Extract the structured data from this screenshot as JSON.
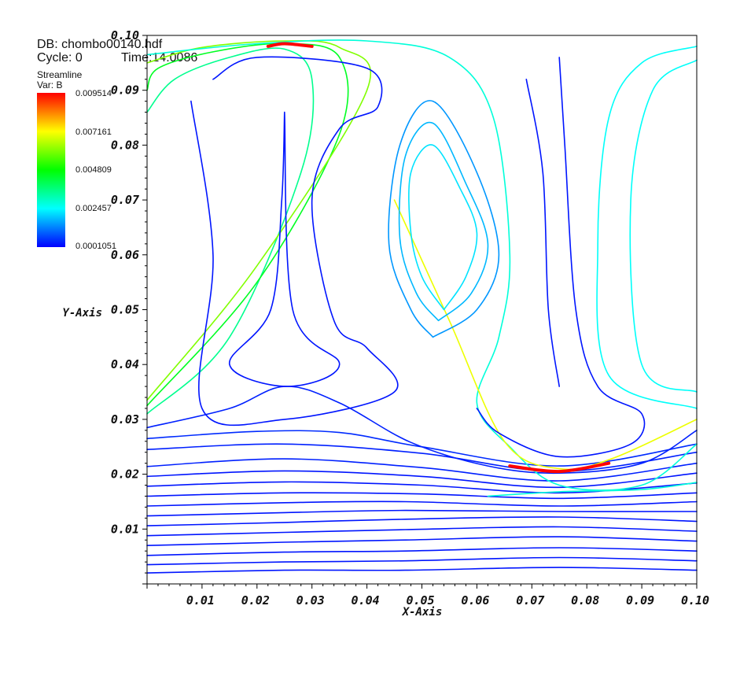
{
  "header": {
    "db": "DB: chombo00140.hdf",
    "cycle": "Cycle: 0",
    "time": "Time:14.0086"
  },
  "legend": {
    "title": "Streamline",
    "var": "Var: B",
    "ticks": [
      "0.009514",
      "0.007161",
      "0.004809",
      "0.002457",
      "0.0001051"
    ],
    "min": 0.0001051,
    "max": 0.009514,
    "colors": [
      "#0000ff",
      "#00ffff",
      "#00ff00",
      "#ffff00",
      "#ff0000"
    ]
  },
  "chart_data": {
    "type": "streamline",
    "xlabel": "X-Axis",
    "ylabel": "Y-Axis",
    "xlim": [
      0,
      0.1
    ],
    "ylim": [
      0,
      0.1
    ],
    "xticks": [
      "0.01",
      "0.02",
      "0.03",
      "0.04",
      "0.05",
      "0.06",
      "0.07",
      "0.08",
      "0.09",
      "0.10"
    ],
    "yticks": [
      "0.01",
      "0.02",
      "0.03",
      "0.04",
      "0.05",
      "0.06",
      "0.07",
      "0.08",
      "0.09",
      "0.10"
    ],
    "variable": "B",
    "streamlines": [
      {
        "v": 0.0003,
        "points": [
          [
            0,
            0.002
          ],
          [
            0.025,
            0.0025
          ],
          [
            0.047,
            0.0025
          ],
          [
            0.075,
            0.003
          ],
          [
            0.1,
            0.0025
          ]
        ]
      },
      {
        "v": 0.0003,
        "points": [
          [
            0,
            0.0035
          ],
          [
            0.025,
            0.004
          ],
          [
            0.047,
            0.0042
          ],
          [
            0.075,
            0.0048
          ],
          [
            0.1,
            0.0042
          ]
        ]
      },
      {
        "v": 0.0003,
        "points": [
          [
            0,
            0.0052
          ],
          [
            0.025,
            0.0058
          ],
          [
            0.047,
            0.006
          ],
          [
            0.075,
            0.0066
          ],
          [
            0.1,
            0.006
          ]
        ]
      },
      {
        "v": 0.0003,
        "points": [
          [
            0,
            0.007
          ],
          [
            0.025,
            0.0076
          ],
          [
            0.047,
            0.008
          ],
          [
            0.075,
            0.0086
          ],
          [
            0.1,
            0.0078
          ]
        ]
      },
      {
        "v": 0.0003,
        "points": [
          [
            0,
            0.0088
          ],
          [
            0.025,
            0.0094
          ],
          [
            0.047,
            0.0099
          ],
          [
            0.075,
            0.0104
          ],
          [
            0.1,
            0.0096
          ]
        ]
      },
      {
        "v": 0.0003,
        "points": [
          [
            0,
            0.0106
          ],
          [
            0.025,
            0.0112
          ],
          [
            0.047,
            0.0118
          ],
          [
            0.075,
            0.0122
          ],
          [
            0.1,
            0.0114
          ]
        ]
      },
      {
        "v": 0.0003,
        "points": [
          [
            0,
            0.0124
          ],
          [
            0.025,
            0.013
          ],
          [
            0.047,
            0.0134
          ],
          [
            0.075,
            0.0132
          ],
          [
            0.1,
            0.0132
          ]
        ]
      },
      {
        "v": 0.0003,
        "points": [
          [
            0,
            0.0142
          ],
          [
            0.025,
            0.0148
          ],
          [
            0.047,
            0.015
          ],
          [
            0.075,
            0.0142
          ],
          [
            0.1,
            0.015
          ]
        ]
      },
      {
        "v": 0.0003,
        "points": [
          [
            0,
            0.016
          ],
          [
            0.025,
            0.0166
          ],
          [
            0.05,
            0.0164
          ],
          [
            0.075,
            0.0156
          ],
          [
            0.1,
            0.0166
          ]
        ]
      },
      {
        "v": 0.0003,
        "points": [
          [
            0,
            0.0178
          ],
          [
            0.025,
            0.0186
          ],
          [
            0.05,
            0.018
          ],
          [
            0.075,
            0.0166
          ],
          [
            0.1,
            0.0184
          ]
        ]
      },
      {
        "v": 0.0003,
        "points": [
          [
            0,
            0.0196
          ],
          [
            0.025,
            0.0206
          ],
          [
            0.05,
            0.0196
          ],
          [
            0.075,
            0.0176
          ],
          [
            0.1,
            0.0202
          ]
        ]
      },
      {
        "v": 0.0004,
        "points": [
          [
            0,
            0.0214
          ],
          [
            0.025,
            0.0228
          ],
          [
            0.05,
            0.0212
          ],
          [
            0.075,
            0.0188
          ],
          [
            0.1,
            0.022
          ]
        ]
      },
      {
        "v": 0.0004,
        "points": [
          [
            0,
            0.0245
          ],
          [
            0.025,
            0.0255
          ],
          [
            0.05,
            0.0238
          ],
          [
            0.075,
            0.0205
          ],
          [
            0.1,
            0.024
          ]
        ]
      },
      {
        "v": 0.0005,
        "points": [
          [
            0,
            0.0265
          ],
          [
            0.02,
            0.0278
          ],
          [
            0.035,
            0.0276
          ],
          [
            0.05,
            0.025
          ],
          [
            0.075,
            0.0215
          ],
          [
            0.1,
            0.0255
          ]
        ]
      },
      {
        "v": 0.0004,
        "points": [
          [
            0,
            0.0285
          ],
          [
            0.015,
            0.032
          ],
          [
            0.025,
            0.036
          ],
          [
            0.035,
            0.033
          ],
          [
            0.048,
            0.0258
          ],
          [
            0.062,
            0.0215
          ],
          [
            0.075,
            0.0202
          ],
          [
            0.09,
            0.022
          ],
          [
            0.1,
            0.028
          ]
        ]
      },
      {
        "v": 0.0035,
        "points": [
          [
            0,
            0.031
          ],
          [
            0.015,
            0.045
          ],
          [
            0.028,
            0.075
          ],
          [
            0.03,
            0.092
          ],
          [
            0.025,
            0.0975
          ],
          [
            0.015,
            0.096
          ],
          [
            0.005,
            0.092
          ],
          [
            0,
            0.086
          ]
        ]
      },
      {
        "v": 0.0045,
        "points": [
          [
            0,
            0.0325
          ],
          [
            0.02,
            0.055
          ],
          [
            0.035,
            0.082
          ],
          [
            0.035,
            0.096
          ],
          [
            0.025,
            0.0985
          ],
          [
            0.012,
            0.097
          ],
          [
            0.002,
            0.094
          ],
          [
            0,
            0.09
          ]
        ]
      },
      {
        "v": 0.006,
        "points": [
          [
            0,
            0.0335
          ],
          [
            0.02,
            0.058
          ],
          [
            0.04,
            0.09
          ],
          [
            0.035,
            0.0978
          ],
          [
            0.025,
            0.099
          ],
          [
            0.01,
            0.0978
          ],
          [
            0,
            0.095
          ]
        ]
      },
      {
        "v": 0.0028,
        "points": [
          [
            0.062,
            0.016
          ],
          [
            0.075,
            0.0168
          ],
          [
            0.09,
            0.0172
          ],
          [
            0.1,
            0.0185
          ]
        ]
      },
      {
        "v": 0.0028,
        "points": [
          [
            0,
            0.0965
          ],
          [
            0.02,
            0.0985
          ],
          [
            0.04,
            0.099
          ],
          [
            0.055,
            0.096
          ],
          [
            0.063,
            0.085
          ],
          [
            0.066,
            0.06
          ],
          [
            0.064,
            0.045
          ],
          [
            0.06,
            0.033
          ],
          [
            0.066,
            0.025
          ],
          [
            0.075,
            0.018
          ],
          [
            0.09,
            0.018
          ],
          [
            0.1,
            0.0255
          ]
        ]
      },
      {
        "v": 0.007,
        "points": [
          [
            0.045,
            0.07
          ],
          [
            0.055,
            0.048
          ],
          [
            0.065,
            0.026
          ],
          [
            0.075,
            0.021
          ],
          [
            0.085,
            0.023
          ],
          [
            0.1,
            0.03
          ]
        ]
      },
      {
        "v": 0.0095,
        "points": [
          [
            0.066,
            0.0215
          ],
          [
            0.075,
            0.0205
          ],
          [
            0.084,
            0.022
          ]
        ]
      },
      {
        "v": 0.0095,
        "points": [
          [
            0.022,
            0.098
          ],
          [
            0.025,
            0.0985
          ],
          [
            0.03,
            0.098
          ]
        ]
      },
      {
        "v": 0.0003,
        "points": [
          [
            0.06,
            0.032
          ],
          [
            0.064,
            0.0275
          ],
          [
            0.075,
            0.0232
          ],
          [
            0.088,
            0.0255
          ],
          [
            0.09,
            0.031
          ],
          [
            0.082,
            0.036
          ],
          [
            0.078,
            0.05
          ],
          [
            0.076,
            0.08
          ],
          [
            0.075,
            0.096
          ]
        ]
      },
      {
        "v": 0.0003,
        "points": [
          [
            0.075,
            0.036
          ],
          [
            0.073,
            0.05
          ],
          [
            0.072,
            0.075
          ],
          [
            0.069,
            0.092
          ]
        ]
      },
      {
        "v": 0.0025,
        "points": [
          [
            0.1,
            0.098
          ],
          [
            0.09,
            0.095
          ],
          [
            0.084,
            0.085
          ],
          [
            0.082,
            0.062
          ],
          [
            0.084,
            0.038
          ],
          [
            0.1,
            0.032
          ]
        ]
      },
      {
        "v": 0.0025,
        "points": [
          [
            0.1,
            0.0955
          ],
          [
            0.092,
            0.09
          ],
          [
            0.088,
            0.07
          ],
          [
            0.09,
            0.04
          ],
          [
            0.1,
            0.035
          ]
        ]
      },
      {
        "v": 0.0003,
        "points": [
          [
            0.012,
            0.092
          ],
          [
            0.02,
            0.096
          ],
          [
            0.04,
            0.094
          ],
          [
            0.042,
            0.087
          ],
          [
            0.035,
            0.083
          ],
          [
            0.03,
            0.07
          ],
          [
            0.034,
            0.048
          ],
          [
            0.04,
            0.043
          ],
          [
            0.045,
            0.035
          ],
          [
            0.025,
            0.03
          ],
          [
            0.01,
            0.032
          ],
          [
            0.012,
            0.06
          ],
          [
            0.008,
            0.088
          ]
        ]
      },
      {
        "v": 0.0003,
        "points": [
          [
            0.025,
            0.086
          ],
          [
            0.0245,
            0.07
          ],
          [
            0.0225,
            0.05
          ],
          [
            0.015,
            0.04
          ],
          [
            0.0255,
            0.036
          ],
          [
            0.035,
            0.04
          ],
          [
            0.0265,
            0.05
          ],
          [
            0.025,
            0.086
          ]
        ]
      },
      {
        "v": 0.0015,
        "points": [
          [
            0.052,
            0.045
          ],
          [
            0.06,
            0.05
          ],
          [
            0.064,
            0.06
          ],
          [
            0.06,
            0.075
          ],
          [
            0.052,
            0.088
          ],
          [
            0.046,
            0.08
          ],
          [
            0.044,
            0.062
          ],
          [
            0.048,
            0.05
          ],
          [
            0.052,
            0.045
          ]
        ]
      },
      {
        "v": 0.0018,
        "points": [
          [
            0.053,
            0.048
          ],
          [
            0.059,
            0.053
          ],
          [
            0.062,
            0.062
          ],
          [
            0.058,
            0.073
          ],
          [
            0.052,
            0.084
          ],
          [
            0.047,
            0.078
          ],
          [
            0.046,
            0.063
          ],
          [
            0.049,
            0.053
          ],
          [
            0.053,
            0.048
          ]
        ]
      },
      {
        "v": 0.0022,
        "points": [
          [
            0.054,
            0.05
          ],
          [
            0.058,
            0.056
          ],
          [
            0.06,
            0.064
          ],
          [
            0.057,
            0.072
          ],
          [
            0.052,
            0.08
          ],
          [
            0.048,
            0.075
          ],
          [
            0.048,
            0.064
          ],
          [
            0.05,
            0.056
          ],
          [
            0.054,
            0.05
          ]
        ]
      }
    ]
  }
}
